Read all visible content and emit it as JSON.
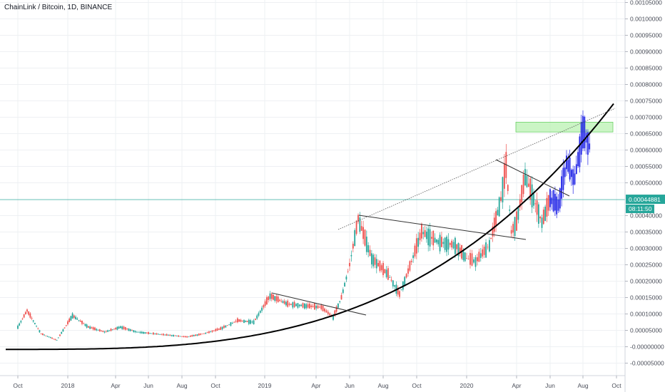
{
  "header": {
    "symbol_line": "ChainLink / Bitcoin, 1D, BINANCE"
  },
  "price_tags": {
    "last_price": "0.00044881",
    "countdown": "08:11:50",
    "last_price_color": "#26a69a",
    "countdown_color": "#26a69a"
  },
  "colors": {
    "up_candle": "#26a69a",
    "down_candle": "#ef5350",
    "recent_candles": "#1e22e6",
    "trendline": "#333333",
    "zone_fill": "#b9f2b2",
    "zone_stroke": "#6fd36a",
    "price_line": "#26a69a",
    "grid": "#eef0f3"
  },
  "chart_data": {
    "type": "candlestick",
    "title": "ChainLink / Bitcoin, 1D, BINANCE",
    "x_axis_labels": [
      "Oct",
      "2018",
      "Apr",
      "Jun",
      "Aug",
      "Oct",
      "2019",
      "Apr",
      "Jun",
      "Aug",
      "Oct",
      "2020",
      "Apr",
      "Jun",
      "Aug",
      "Oct"
    ],
    "y_axis_labels": [
      "0.00105000",
      "0.00100000",
      "0.00095000",
      "0.00090000",
      "0.00085000",
      "0.00080000",
      "0.00075000",
      "0.00070000",
      "0.00065000",
      "0.00060000",
      "0.00055000",
      "0.00050000",
      "0.00040000",
      "0.00035000",
      "0.00030000",
      "0.00025000",
      "0.00020000",
      "0.00015000",
      "0.00010000",
      "0.00005000",
      "-0.00000000",
      "-0.00005000"
    ],
    "ylim": [
      -6e-05,
      0.00106
    ],
    "grid": true,
    "last_price": 0.00044881,
    "price_path": [
      {
        "t": "2017-10",
        "v": 6e-05
      },
      {
        "t": "2017-10",
        "v": 0.00011
      },
      {
        "t": "2017-11",
        "v": 4e-05
      },
      {
        "t": "2017-12",
        "v": 2e-05
      },
      {
        "t": "2018-01",
        "v": 9.5e-05
      },
      {
        "t": "2018-02",
        "v": 6e-05
      },
      {
        "t": "2018-03",
        "v": 4.5e-05
      },
      {
        "t": "2018-04",
        "v": 6e-05
      },
      {
        "t": "2018-05",
        "v": 4.5e-05
      },
      {
        "t": "2018-06",
        "v": 4e-05
      },
      {
        "t": "2018-07",
        "v": 3.5e-05
      },
      {
        "t": "2018-08",
        "v": 3e-05
      },
      {
        "t": "2018-09",
        "v": 4e-05
      },
      {
        "t": "2018-10",
        "v": 5.5e-05
      },
      {
        "t": "2018-11",
        "v": 8e-05
      },
      {
        "t": "2018-12",
        "v": 7.5e-05
      },
      {
        "t": "2019-01",
        "v": 0.000155
      },
      {
        "t": "2019-02",
        "v": 0.00013
      },
      {
        "t": "2019-03",
        "v": 0.000125
      },
      {
        "t": "2019-04",
        "v": 0.00012
      },
      {
        "t": "2019-05",
        "v": 9e-05
      },
      {
        "t": "2019-05",
        "v": 0.00015
      },
      {
        "t": "2019-06",
        "v": 0.00025
      },
      {
        "t": "2019-06",
        "v": 0.00039
      },
      {
        "t": "2019-07",
        "v": 0.00027
      },
      {
        "t": "2019-08",
        "v": 0.00022
      },
      {
        "t": "2019-09",
        "v": 0.00016
      },
      {
        "t": "2019-09",
        "v": 0.00023
      },
      {
        "t": "2019-10",
        "v": 0.00035
      },
      {
        "t": "2019-11",
        "v": 0.00032
      },
      {
        "t": "2019-12",
        "v": 0.00031
      },
      {
        "t": "2020-01",
        "v": 0.00027
      },
      {
        "t": "2020-01",
        "v": 0.00026
      },
      {
        "t": "2020-02",
        "v": 0.00031
      },
      {
        "t": "2020-03",
        "v": 0.00045
      },
      {
        "t": "2020-03",
        "v": 0.00055
      },
      {
        "t": "2020-03",
        "v": 0.00035
      },
      {
        "t": "2020-04",
        "v": 0.00038
      },
      {
        "t": "2020-04",
        "v": 0.00052
      },
      {
        "t": "2020-05",
        "v": 0.00045
      },
      {
        "t": "2020-05",
        "v": 0.00038
      },
      {
        "t": "2020-06",
        "v": 0.00045
      },
      {
        "t": "2020-06",
        "v": 0.00043
      },
      {
        "t": "2020-07",
        "v": 0.00056
      },
      {
        "t": "2020-07",
        "v": 0.00051
      },
      {
        "t": "2020-08",
        "v": 0.00066
      },
      {
        "t": "2020-08",
        "v": 0.0006
      }
    ],
    "annotations": {
      "curved_support": "parabolic support curve beneath price",
      "upper_trendline": "dotted ascending resistance line",
      "triangles": [
        "2019 Q1–Q2 descending line",
        "2019 Jul – 2020 Apr descending line",
        "2020 Mar – Jun descending line"
      ],
      "target_zone": [
        0.000655,
        0.000685
      ]
    }
  }
}
